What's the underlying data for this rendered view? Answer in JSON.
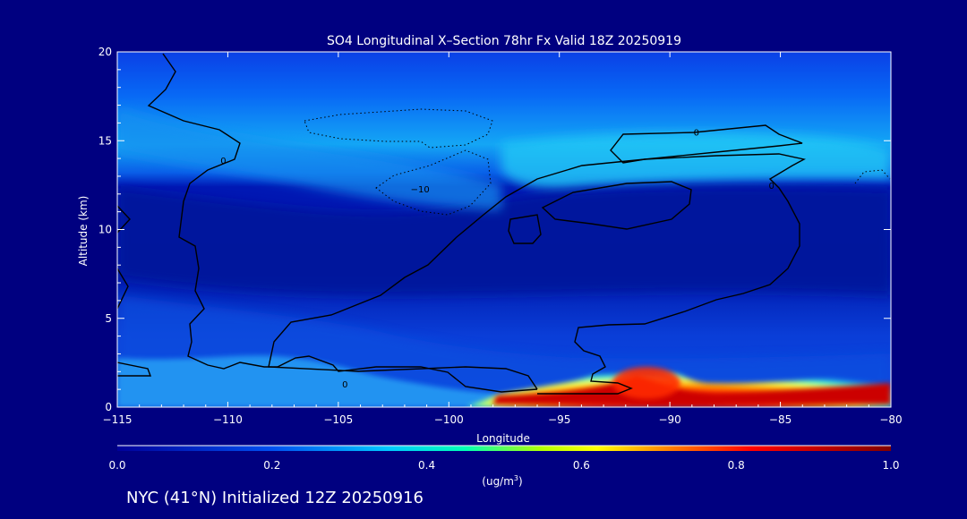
{
  "chart_data": {
    "type": "heatmap",
    "title": "SO4 Longitudinal X–Section 78hr  Fx Valid 18Z 20250919",
    "xlabel": "Longitude",
    "ylabel": "Altitude (km)",
    "xlim": [
      -115,
      -80
    ],
    "ylim": [
      0,
      20
    ],
    "x_ticks": [
      -115,
      -110,
      -105,
      -100,
      -95,
      -90,
      -85,
      -80
    ],
    "x_tick_labels": [
      "−115",
      "−110",
      "−105",
      "−100",
      "−95",
      "−90",
      "−85",
      "−80"
    ],
    "y_ticks": [
      0,
      5,
      10,
      15,
      20
    ],
    "y_tick_labels": [
      "0",
      "5",
      "10",
      "15",
      "20"
    ],
    "colorbar": {
      "min": 0.0,
      "max": 1.0,
      "ticks": [
        0.0,
        0.2,
        0.4,
        0.6,
        0.8,
        1.0
      ],
      "tick_labels": [
        "0.0",
        "0.2",
        "0.4",
        "0.6",
        "0.8",
        "1.0"
      ],
      "units_label": "(ug/m",
      "units_superscript": "3",
      "units_suffix": ")"
    },
    "contour_labels": [
      {
        "text": "0",
        "lon": -110.2,
        "alt": 13.9
      },
      {
        "text": "0",
        "lon": -104.7,
        "alt": 1.3
      },
      {
        "text": "−10",
        "lon": -101.3,
        "alt": 12.3
      },
      {
        "text": "0",
        "lon": -88.8,
        "alt": 15.5
      },
      {
        "text": "0",
        "lon": -85.4,
        "alt": 12.5
      }
    ],
    "plume_peak": {
      "lon": -91.4,
      "alt": 1.0,
      "value": 1.0
    }
  },
  "footer": {
    "location_text": "NYC (41°N) Initialized 12Z 20250916"
  },
  "colors": {
    "background": "#000080",
    "text": "#ffffff",
    "contour": "#000000"
  }
}
